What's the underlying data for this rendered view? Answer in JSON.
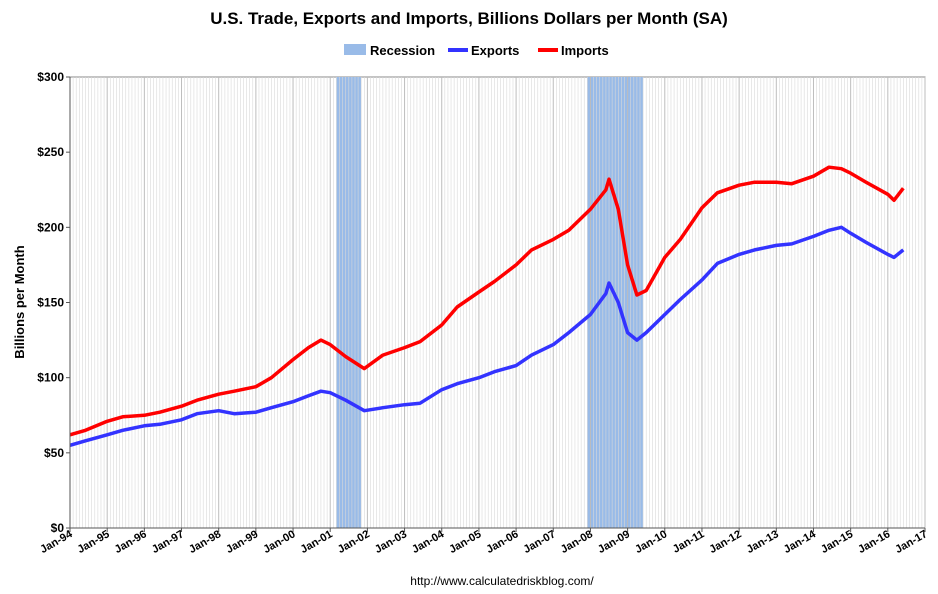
{
  "chart_data": {
    "type": "line",
    "title": "U.S. Trade, Exports and Imports, Billions Dollars per Month (SA)",
    "ylabel": "Billions per Month",
    "xlabel": "",
    "ylim": [
      0,
      300
    ],
    "yticks": [
      0,
      50,
      100,
      150,
      200,
      250,
      300
    ],
    "ytick_labels": [
      "$0",
      "$50",
      "$100",
      "$150",
      "$200",
      "$250",
      "$300"
    ],
    "xlim": [
      "1994-01",
      "2017-01"
    ],
    "xtick_labels": [
      "Jan-94",
      "Jan-95",
      "Jan-96",
      "Jan-97",
      "Jan-98",
      "Jan-99",
      "Jan-00",
      "Jan-01",
      "Jan-02",
      "Jan-03",
      "Jan-04",
      "Jan-05",
      "Jan-06",
      "Jan-07",
      "Jan-08",
      "Jan-09",
      "Jan-10",
      "Jan-11",
      "Jan-12",
      "Jan-13",
      "Jan-14",
      "Jan-15",
      "Jan-16",
      "Jan-17"
    ],
    "grid": "vertical-monthly",
    "legend_position": "top-center",
    "recessions": [
      {
        "start": "2001-03",
        "end": "2001-11"
      },
      {
        "start": "2007-12",
        "end": "2009-06"
      }
    ],
    "series": [
      {
        "name": "Exports",
        "color": "#3333ff",
        "points": [
          [
            "1994-01",
            55
          ],
          [
            "1994-06",
            58
          ],
          [
            "1995-01",
            62
          ],
          [
            "1995-06",
            65
          ],
          [
            "1996-01",
            68
          ],
          [
            "1996-06",
            69
          ],
          [
            "1997-01",
            72
          ],
          [
            "1997-06",
            76
          ],
          [
            "1998-01",
            78
          ],
          [
            "1998-06",
            76
          ],
          [
            "1999-01",
            77
          ],
          [
            "1999-06",
            80
          ],
          [
            "2000-01",
            84
          ],
          [
            "2000-06",
            88
          ],
          [
            "2000-10",
            91
          ],
          [
            "2001-01",
            90
          ],
          [
            "2001-06",
            85
          ],
          [
            "2001-12",
            78
          ],
          [
            "2002-06",
            80
          ],
          [
            "2003-01",
            82
          ],
          [
            "2003-06",
            83
          ],
          [
            "2004-01",
            92
          ],
          [
            "2004-06",
            96
          ],
          [
            "2005-01",
            100
          ],
          [
            "2005-06",
            104
          ],
          [
            "2006-01",
            108
          ],
          [
            "2006-06",
            115
          ],
          [
            "2007-01",
            122
          ],
          [
            "2007-06",
            130
          ],
          [
            "2008-01",
            142
          ],
          [
            "2008-06",
            156
          ],
          [
            "2008-07",
            163
          ],
          [
            "2008-10",
            150
          ],
          [
            "2009-01",
            130
          ],
          [
            "2009-04",
            125
          ],
          [
            "2009-07",
            130
          ],
          [
            "2010-01",
            142
          ],
          [
            "2010-06",
            152
          ],
          [
            "2011-01",
            165
          ],
          [
            "2011-06",
            176
          ],
          [
            "2012-01",
            182
          ],
          [
            "2012-06",
            185
          ],
          [
            "2013-01",
            188
          ],
          [
            "2013-06",
            189
          ],
          [
            "2014-01",
            194
          ],
          [
            "2014-06",
            198
          ],
          [
            "2014-10",
            200
          ],
          [
            "2015-01",
            196
          ],
          [
            "2015-06",
            190
          ],
          [
            "2016-01",
            182
          ],
          [
            "2016-03",
            180
          ],
          [
            "2016-06",
            185
          ]
        ]
      },
      {
        "name": "Imports",
        "color": "#ff0000",
        "points": [
          [
            "1994-01",
            62
          ],
          [
            "1994-06",
            65
          ],
          [
            "1995-01",
            71
          ],
          [
            "1995-06",
            74
          ],
          [
            "1996-01",
            75
          ],
          [
            "1996-06",
            77
          ],
          [
            "1997-01",
            81
          ],
          [
            "1997-06",
            85
          ],
          [
            "1998-01",
            89
          ],
          [
            "1998-06",
            91
          ],
          [
            "1999-01",
            94
          ],
          [
            "1999-06",
            100
          ],
          [
            "2000-01",
            112
          ],
          [
            "2000-06",
            120
          ],
          [
            "2000-10",
            125
          ],
          [
            "2001-01",
            122
          ],
          [
            "2001-06",
            114
          ],
          [
            "2001-12",
            106
          ],
          [
            "2002-06",
            115
          ],
          [
            "2003-01",
            120
          ],
          [
            "2003-06",
            124
          ],
          [
            "2004-01",
            135
          ],
          [
            "2004-06",
            147
          ],
          [
            "2005-01",
            157
          ],
          [
            "2005-06",
            164
          ],
          [
            "2006-01",
            175
          ],
          [
            "2006-06",
            185
          ],
          [
            "2007-01",
            192
          ],
          [
            "2007-06",
            198
          ],
          [
            "2008-01",
            212
          ],
          [
            "2008-06",
            225
          ],
          [
            "2008-07",
            232
          ],
          [
            "2008-10",
            212
          ],
          [
            "2009-01",
            175
          ],
          [
            "2009-04",
            155
          ],
          [
            "2009-07",
            158
          ],
          [
            "2010-01",
            180
          ],
          [
            "2010-06",
            192
          ],
          [
            "2011-01",
            213
          ],
          [
            "2011-06",
            223
          ],
          [
            "2012-01",
            228
          ],
          [
            "2012-06",
            230
          ],
          [
            "2013-01",
            230
          ],
          [
            "2013-06",
            229
          ],
          [
            "2014-01",
            234
          ],
          [
            "2014-06",
            240
          ],
          [
            "2014-10",
            239
          ],
          [
            "2015-01",
            236
          ],
          [
            "2015-06",
            230
          ],
          [
            "2016-01",
            222
          ],
          [
            "2016-03",
            218
          ],
          [
            "2016-06",
            226
          ]
        ]
      }
    ],
    "legend": [
      {
        "label": "Recession",
        "color": "#99bbe8",
        "kind": "swatch"
      },
      {
        "label": "Exports",
        "color": "#3333ff",
        "kind": "line"
      },
      {
        "label": "Imports",
        "color": "#ff0000",
        "kind": "line"
      }
    ],
    "source": "http://www.calculatedriskblog.com/"
  }
}
